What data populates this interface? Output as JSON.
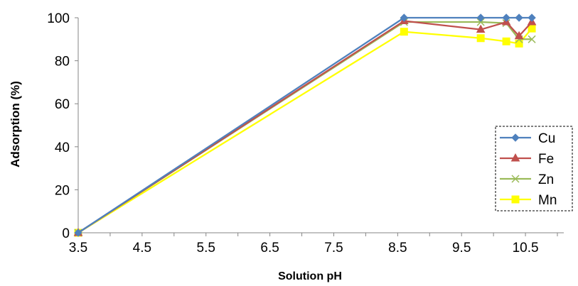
{
  "chart_data": {
    "type": "line",
    "title": "",
    "xlabel": "Solution pH",
    "ylabel": "Adsorption (%)",
    "xlim": [
      3.5,
      11.1
    ],
    "ylim": [
      0,
      100
    ],
    "xticks": [
      "3.5",
      "4.5",
      "5.5",
      "6.5",
      "7.5",
      "8.5",
      "9.5",
      "10.5"
    ],
    "yticks": [
      "0",
      "20",
      "40",
      "60",
      "80",
      "100"
    ],
    "grid": false,
    "legend_position": "right",
    "series": [
      {
        "name": "Cu",
        "color": "#4F81BD",
        "marker": "diamond",
        "x": [
          3.5,
          8.6,
          9.8,
          10.2,
          10.4,
          10.6
        ],
        "y": [
          0,
          100,
          100,
          100,
          100,
          100
        ]
      },
      {
        "name": "Fe",
        "color": "#C0504D",
        "marker": "triangle",
        "x": [
          3.5,
          8.6,
          9.8,
          10.2,
          10.4,
          10.6
        ],
        "y": [
          0,
          98.5,
          94.5,
          98,
          91.5,
          98
        ]
      },
      {
        "name": "Zn",
        "color": "#9BBB59",
        "marker": "x",
        "x": [
          3.5,
          8.6,
          9.8,
          10.2,
          10.4,
          10.6
        ],
        "y": [
          0,
          98,
          98,
          97.5,
          90,
          90
        ]
      },
      {
        "name": "Mn",
        "color": "#FFFF00",
        "marker": "square",
        "x": [
          3.5,
          8.6,
          9.8,
          10.2,
          10.4,
          10.6
        ],
        "y": [
          0,
          93.5,
          90.5,
          89,
          88,
          95
        ]
      }
    ]
  }
}
